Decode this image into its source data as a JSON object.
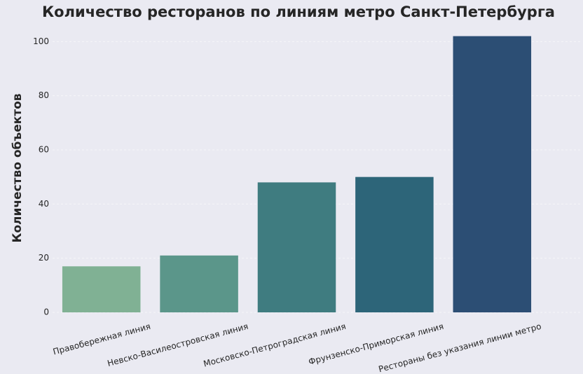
{
  "chart_data": {
    "type": "bar",
    "title": "Количество ресторанов по линиям метро Санкт-Петербурга",
    "y_label": "Количество объектов",
    "categories": [
      "Правобережная линия",
      "Невско-Василеостровская линия",
      "Московско-Петроградская линия",
      "Фрунзенско-Приморская линия",
      "Рестораны без указания линии метро"
    ],
    "values": [
      17,
      21,
      48,
      50,
      102
    ],
    "colors": [
      "#80b194",
      "#5b968a",
      "#3f7c80",
      "#2d6579",
      "#2c4e74"
    ],
    "ylim": [
      0,
      105
    ],
    "yticks": [
      0,
      20,
      40,
      60,
      80,
      100
    ],
    "grid": true
  }
}
